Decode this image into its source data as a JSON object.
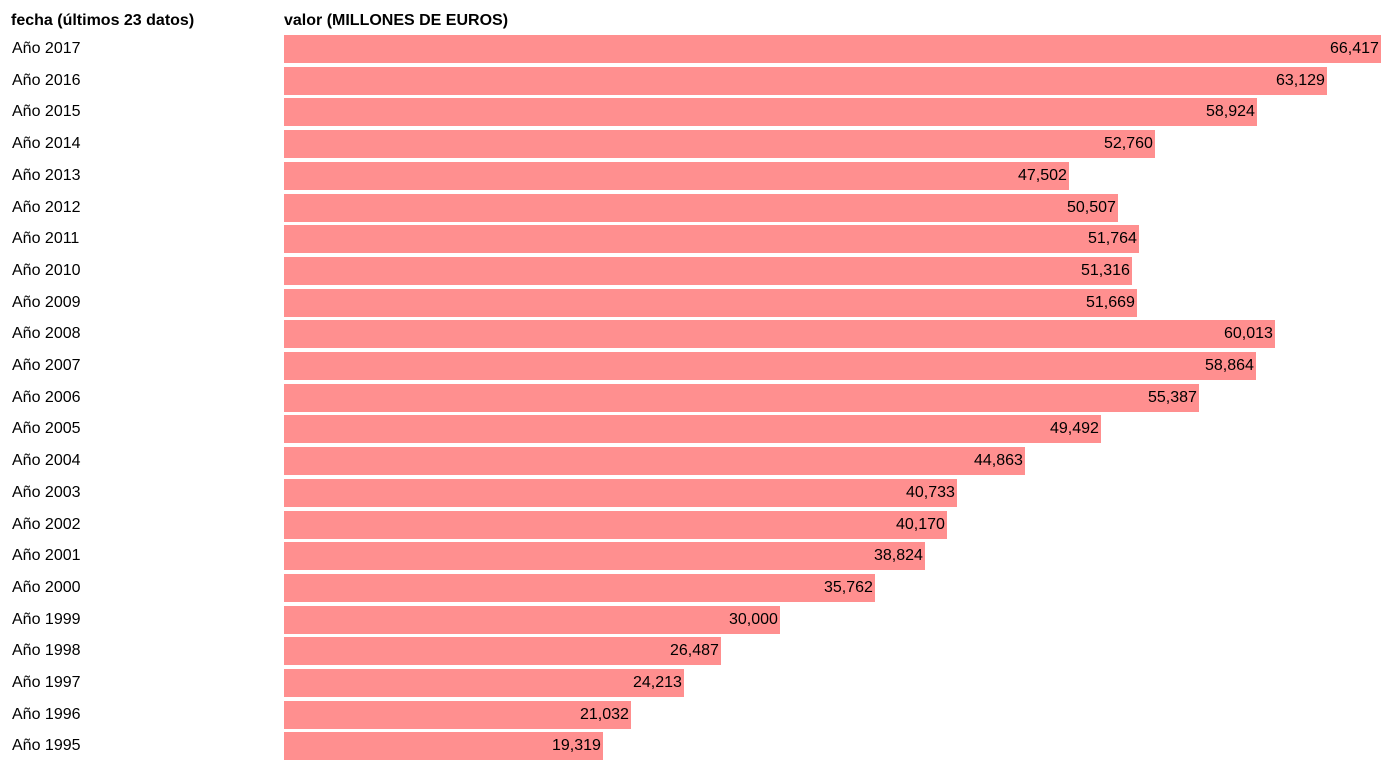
{
  "colors": {
    "bar": "#ff8f8f",
    "text": "#000000",
    "background": "#ffffff"
  },
  "headers": {
    "date": "fecha (últimos 23 datos)",
    "value": "valor (MILLONES DE EUROS)"
  },
  "chart_data": {
    "type": "bar",
    "orientation": "horizontal",
    "xlim": [
      0,
      66417
    ],
    "categories": [
      "Año 2017",
      "Año 2016",
      "Año 2015",
      "Año 2014",
      "Año 2013",
      "Año 2012",
      "Año 2011",
      "Año 2010",
      "Año 2009",
      "Año 2008",
      "Año 2007",
      "Año 2006",
      "Año 2005",
      "Año 2004",
      "Año 2003",
      "Año 2002",
      "Año 2001",
      "Año 2000",
      "Año 1999",
      "Año 1998",
      "Año 1997",
      "Año 1996",
      "Año 1995"
    ],
    "values": [
      66417,
      63129,
      58924,
      52760,
      47502,
      50507,
      51764,
      51316,
      51669,
      60013,
      58864,
      55387,
      49492,
      44863,
      40733,
      40170,
      38824,
      35762,
      30000,
      26487,
      24213,
      21032,
      19319
    ],
    "value_labels": [
      "66,417",
      "63,129",
      "58,924",
      "52,760",
      "47,502",
      "50,507",
      "51,764",
      "51,316",
      "51,669",
      "60,013",
      "58,864",
      "55,387",
      "49,492",
      "44,863",
      "40,733",
      "40,170",
      "38,824",
      "35,762",
      "30,000",
      "26,487",
      "24,213",
      "21,032",
      "19,319"
    ]
  }
}
